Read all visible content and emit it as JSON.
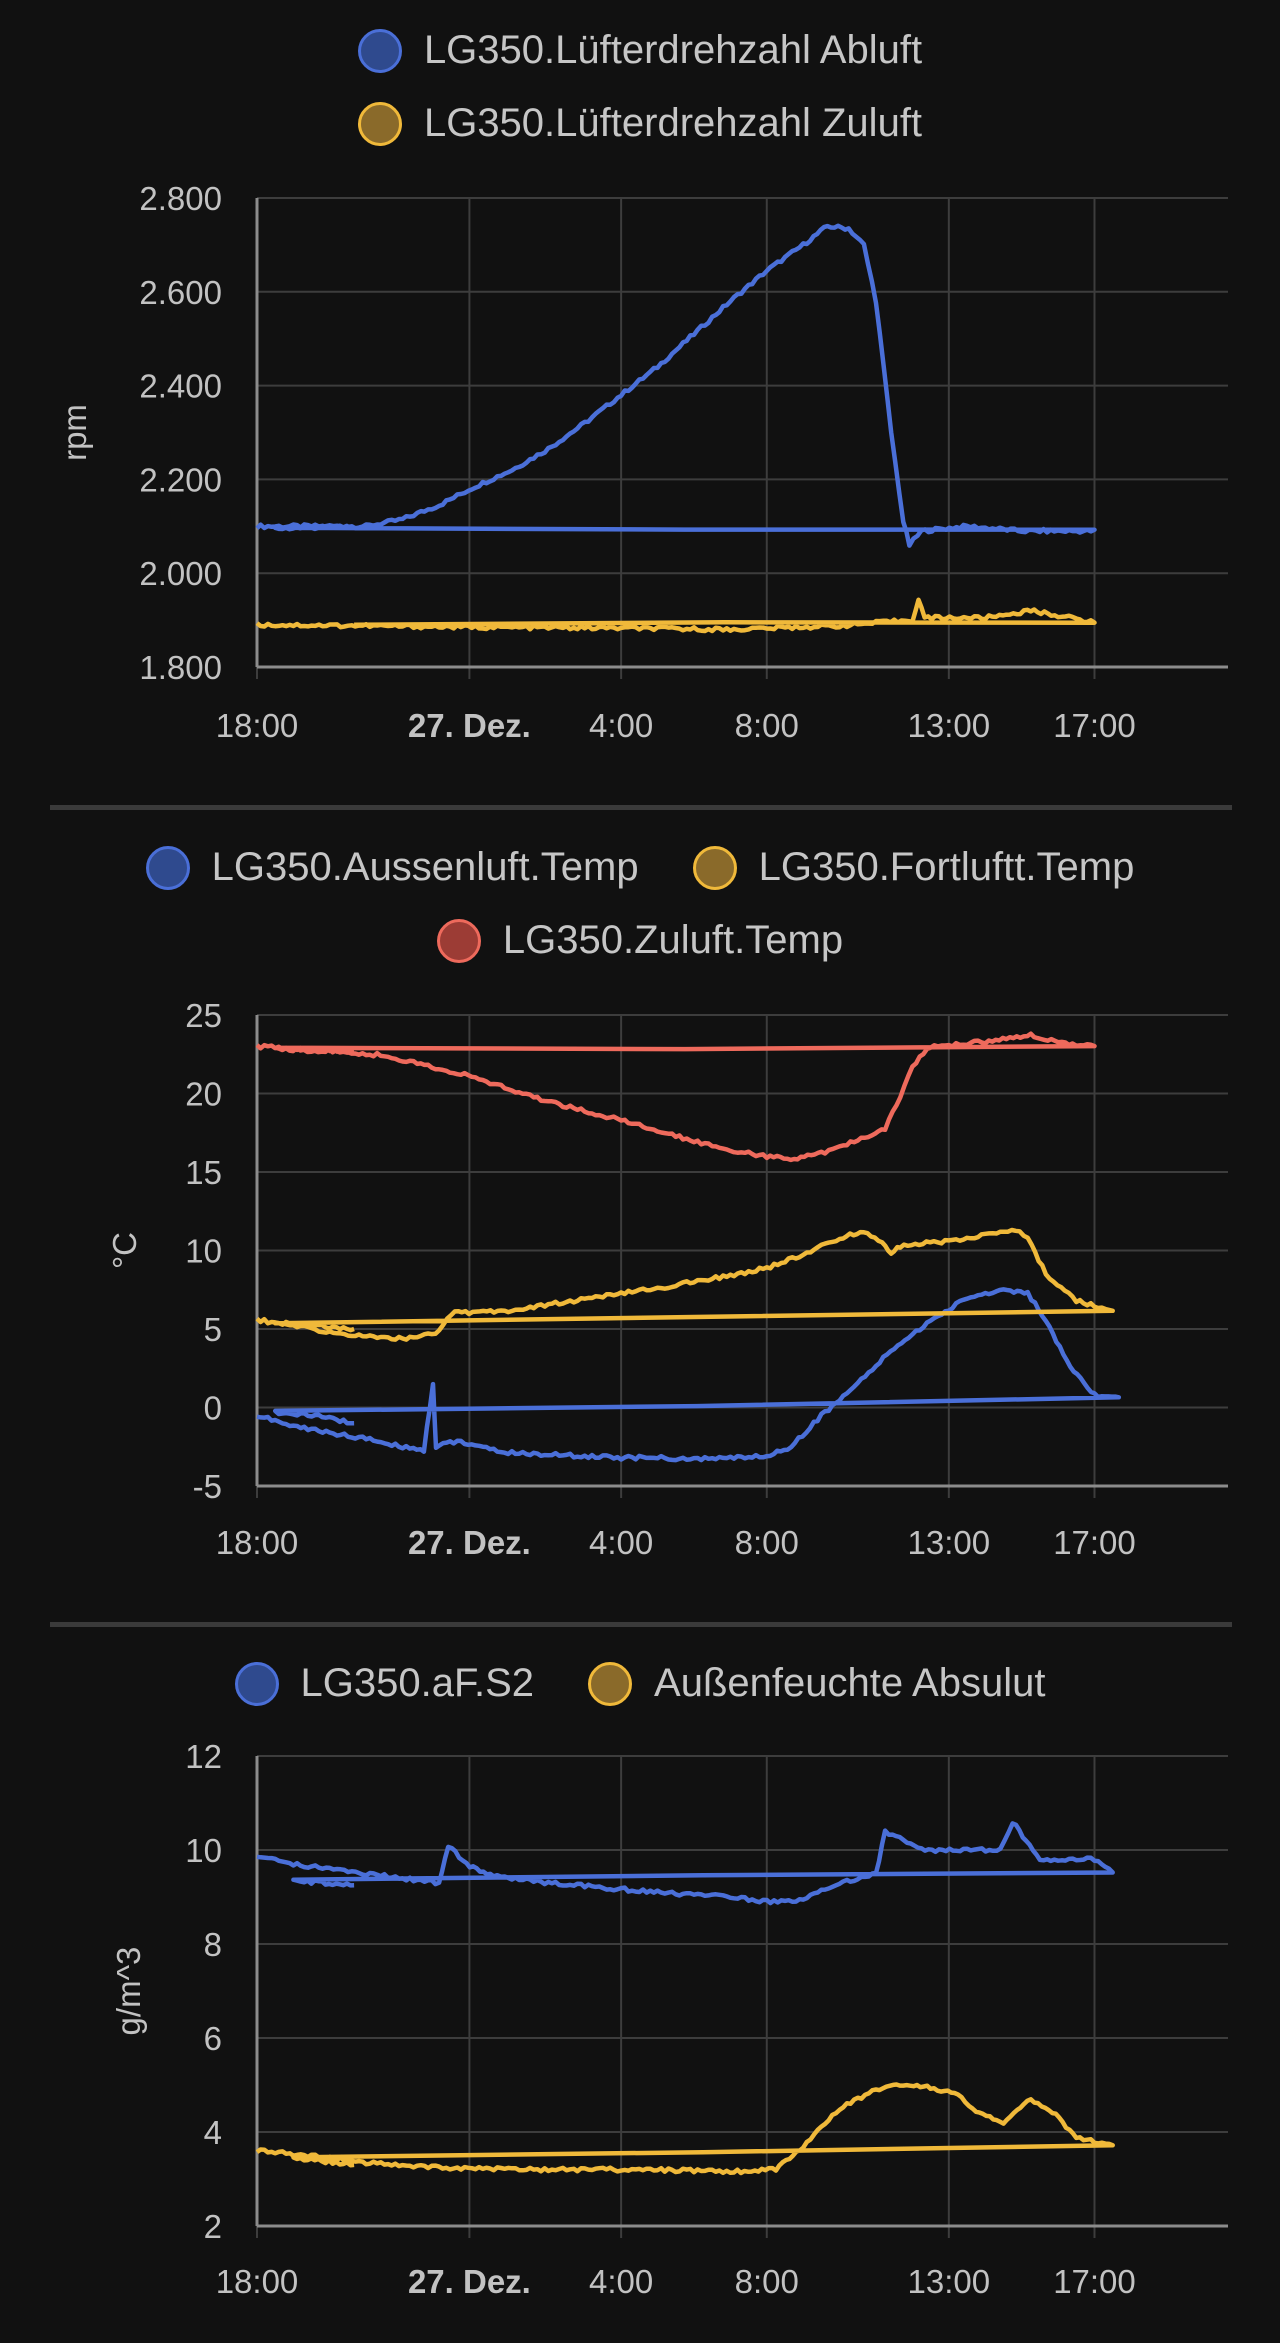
{
  "colors": {
    "blue": "#4a6fd8",
    "yellow": "#f0b93a",
    "red": "#ee6a5c",
    "grid": "#3d3d3d",
    "axis": "#8c8c8c",
    "tick_text": "#c2c2c2",
    "background": "#111111"
  },
  "x_ticks": [
    "18:00",
    "27. Dez.",
    "4:00",
    "8:00",
    "13:00",
    "17:00"
  ],
  "chart_data": [
    {
      "type": "line",
      "ylabel": "rpm",
      "ylim": [
        1800,
        2800
      ],
      "yticks": [
        "1.800",
        "2.000",
        "2.200",
        "2.400",
        "2.600",
        "2.800"
      ],
      "ytick_values": [
        1800,
        2000,
        2200,
        2400,
        2600,
        2800
      ],
      "grid": true,
      "legend": "top-center",
      "series": [
        {
          "name": "LG350.Lüfterdrehzahl Abluft",
          "color": "blue",
          "points": [
            [
              "18:00",
              2100
            ],
            [
              "21:00",
              2100
            ],
            [
              "22:00",
              2115
            ],
            [
              "23:00",
              2145
            ],
            [
              "00:00",
              2185
            ],
            [
              "01:00",
              2220
            ],
            [
              "02:00",
              2265
            ],
            [
              "03:00",
              2320
            ],
            [
              "04:00",
              2380
            ],
            [
              "05:00",
              2440
            ],
            [
              "06:00",
              2510
            ],
            [
              "07:00",
              2580
            ],
            [
              "08:00",
              2645
            ],
            [
              "09:00",
              2700
            ],
            [
              "09:40",
              2740
            ],
            [
              "10:15",
              2735
            ],
            [
              "10:40",
              2700
            ],
            [
              "11:00",
              2580
            ],
            [
              "11:25",
              2300
            ],
            [
              "11:45",
              2110
            ],
            [
              "11:55",
              2060
            ],
            [
              "12:15",
              2090
            ],
            [
              "13:30",
              2100
            ],
            [
              "15:00",
              2090
            ],
            [
              "17:00",
              2090
            ],
            [
              "18:30",
              2095
            ],
            [
              "20:40",
              2100
            ]
          ]
        },
        {
          "name": "LG350.Lüfterdrehzahl Zuluft",
          "color": "yellow",
          "points": [
            [
              "18:00",
              1890
            ],
            [
              "21:00",
              1888
            ],
            [
              "00:00",
              1885
            ],
            [
              "04:00",
              1883
            ],
            [
              "07:00",
              1880
            ],
            [
              "10:00",
              1888
            ],
            [
              "12:00",
              1900
            ],
            [
              "12:10",
              1945
            ],
            [
              "12:20",
              1905
            ],
            [
              "14:00",
              1905
            ],
            [
              "15:15",
              1920
            ],
            [
              "16:00",
              1910
            ],
            [
              "17:00",
              1895
            ],
            [
              "20:40",
              1890
            ]
          ]
        }
      ]
    },
    {
      "type": "line",
      "ylabel": "°C",
      "ylim": [
        -5,
        25
      ],
      "yticks": [
        "-5",
        "0",
        "5",
        "10",
        "15",
        "20",
        "25"
      ],
      "ytick_values": [
        -5,
        0,
        5,
        10,
        15,
        20,
        25
      ],
      "grid": true,
      "legend": "top-center",
      "series": [
        {
          "name": "LG350.Aussenluft.Temp",
          "color": "blue",
          "points": [
            [
              "18:00",
              -0.5
            ],
            [
              "19:00",
              -1.2
            ],
            [
              "20:00",
              -1.6
            ],
            [
              "21:00",
              -2.0
            ],
            [
              "22:00",
              -2.5
            ],
            [
              "22:35",
              -2.7
            ],
            [
              "22:50",
              1.5
            ],
            [
              "22:55",
              -2.5
            ],
            [
              "23:30",
              -2.1
            ],
            [
              "00:00",
              -2.5
            ],
            [
              "01:00",
              -2.9
            ],
            [
              "02:00",
              -3.0
            ],
            [
              "03:00",
              -3.1
            ],
            [
              "04:00",
              -3.2
            ],
            [
              "05:00",
              -3.2
            ],
            [
              "06:00",
              -3.3
            ],
            [
              "07:00",
              -3.2
            ],
            [
              "08:00",
              -3.1
            ],
            [
              "08:40",
              -2.5
            ],
            [
              "09:30",
              -0.5
            ],
            [
              "10:30",
              1.5
            ],
            [
              "11:30",
              3.8
            ],
            [
              "12:30",
              5.5
            ],
            [
              "13:30",
              7.0
            ],
            [
              "14:30",
              7.5
            ],
            [
              "15:10",
              7.3
            ],
            [
              "15:40",
              5.5
            ],
            [
              "16:20",
              2.5
            ],
            [
              "17:00",
              0.8
            ],
            [
              "17:40",
              0.6
            ],
            [
              "18:30",
              -0.3
            ],
            [
              "19:30",
              -0.5
            ],
            [
              "20:40",
              -1.0
            ]
          ]
        },
        {
          "name": "LG350.Fortluftt.Temp",
          "color": "yellow",
          "points": [
            [
              "18:00",
              5.6
            ],
            [
              "20:00",
              4.8
            ],
            [
              "21:00",
              4.5
            ],
            [
              "22:00",
              4.4
            ],
            [
              "23:00",
              4.8
            ],
            [
              "23:20",
              6.0
            ],
            [
              "01:00",
              6.2
            ],
            [
              "03:00",
              6.9
            ],
            [
              "05:00",
              7.6
            ],
            [
              "07:00",
              8.4
            ],
            [
              "08:00",
              8.9
            ],
            [
              "09:00",
              9.7
            ],
            [
              "10:00",
              10.8
            ],
            [
              "10:40",
              11.2
            ],
            [
              "11:10",
              10.6
            ],
            [
              "11:25",
              9.8
            ],
            [
              "11:40",
              10.3
            ],
            [
              "13:00",
              10.6
            ],
            [
              "14:00",
              11.0
            ],
            [
              "14:50",
              11.3
            ],
            [
              "15:10",
              10.8
            ],
            [
              "15:40",
              8.5
            ],
            [
              "16:30",
              6.8
            ],
            [
              "17:30",
              6.2
            ],
            [
              "18:30",
              5.4
            ],
            [
              "19:30",
              5.2
            ],
            [
              "20:40",
              5.0
            ]
          ]
        },
        {
          "name": "LG350.Zuluft.Temp",
          "color": "red",
          "points": [
            [
              "18:00",
              23.0
            ],
            [
              "20:00",
              22.8
            ],
            [
              "21:30",
              22.4
            ],
            [
              "23:00",
              21.6
            ],
            [
              "00:00",
              21.0
            ],
            [
              "01:00",
              20.2
            ],
            [
              "02:00",
              19.5
            ],
            [
              "03:00",
              18.9
            ],
            [
              "04:00",
              18.3
            ],
            [
              "05:00",
              17.6
            ],
            [
              "06:00",
              17.0
            ],
            [
              "07:00",
              16.4
            ],
            [
              "08:00",
              16.0
            ],
            [
              "08:45",
              15.8
            ],
            [
              "09:30",
              16.2
            ],
            [
              "10:30",
              17.0
            ],
            [
              "11:15",
              17.8
            ],
            [
              "11:40",
              19.8
            ],
            [
              "12:00",
              21.8
            ],
            [
              "12:30",
              23.0
            ],
            [
              "14:00",
              23.3
            ],
            [
              "15:15",
              23.7
            ],
            [
              "16:00",
              23.3
            ],
            [
              "17:00",
              23.0
            ],
            [
              "18:30",
              22.8
            ],
            [
              "20:40",
              22.7
            ]
          ]
        }
      ]
    },
    {
      "type": "line",
      "ylabel": "g/m^3",
      "ylim": [
        2,
        12
      ],
      "yticks": [
        "2",
        "4",
        "6",
        "8",
        "10",
        "12"
      ],
      "ytick_values": [
        2,
        4,
        6,
        8,
        10,
        12
      ],
      "grid": true,
      "legend": "top-center",
      "series": [
        {
          "name": "LG350.aF.S2",
          "color": "blue",
          "points": [
            [
              "18:00",
              9.85
            ],
            [
              "19:00",
              9.7
            ],
            [
              "20:00",
              9.6
            ],
            [
              "21:00",
              9.5
            ],
            [
              "22:00",
              9.4
            ],
            [
              "23:00",
              9.3
            ],
            [
              "23:15",
              10.1
            ],
            [
              "23:45",
              9.7
            ],
            [
              "00:30",
              9.45
            ],
            [
              "02:00",
              9.3
            ],
            [
              "03:30",
              9.2
            ],
            [
              "05:00",
              9.1
            ],
            [
              "07:00",
              9.0
            ],
            [
              "08:00",
              8.9
            ],
            [
              "09:00",
              8.95
            ],
            [
              "10:00",
              9.3
            ],
            [
              "11:00",
              9.5
            ],
            [
              "11:15",
              10.4
            ],
            [
              "11:45",
              10.2
            ],
            [
              "12:15",
              10.0
            ],
            [
              "13:30",
              10.0
            ],
            [
              "14:25",
              10.0
            ],
            [
              "14:45",
              10.6
            ],
            [
              "15:30",
              9.8
            ],
            [
              "17:00",
              9.8
            ],
            [
              "17:30",
              9.5
            ],
            [
              "19:00",
              9.35
            ],
            [
              "20:40",
              9.25
            ]
          ]
        },
        {
          "name": "Außenfeuchte Absulut",
          "color": "yellow",
          "points": [
            [
              "18:00",
              3.6
            ],
            [
              "19:30",
              3.5
            ],
            [
              "21:00",
              3.35
            ],
            [
              "23:00",
              3.25
            ],
            [
              "01:00",
              3.2
            ],
            [
              "03:00",
              3.2
            ],
            [
              "05:00",
              3.2
            ],
            [
              "07:00",
              3.15
            ],
            [
              "08:15",
              3.2
            ],
            [
              "09:00",
              3.7
            ],
            [
              "10:00",
              4.5
            ],
            [
              "11:00",
              4.9
            ],
            [
              "11:45",
              5.0
            ],
            [
              "12:30",
              4.95
            ],
            [
              "13:15",
              4.8
            ],
            [
              "13:45",
              4.4
            ],
            [
              "14:30",
              4.2
            ],
            [
              "15:15",
              4.7
            ],
            [
              "15:45",
              4.5
            ],
            [
              "16:30",
              3.9
            ],
            [
              "17:30",
              3.7
            ],
            [
              "19:00",
              3.45
            ],
            [
              "20:40",
              3.3
            ]
          ]
        }
      ]
    }
  ]
}
